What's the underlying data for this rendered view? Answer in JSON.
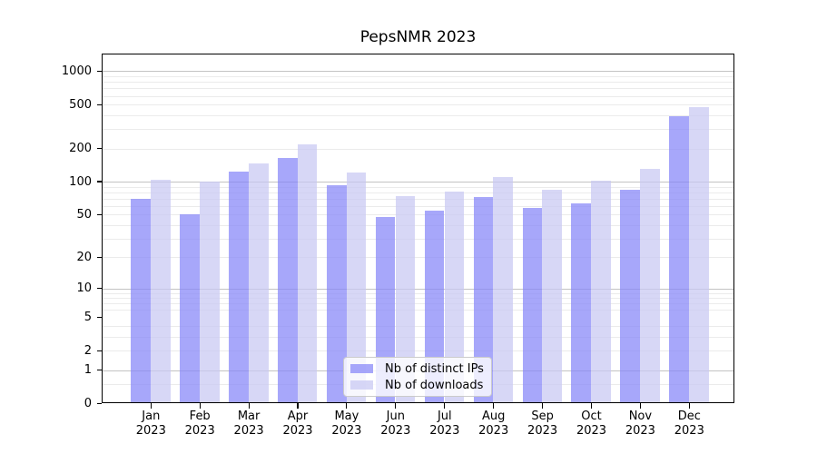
{
  "title": "PepsNMR 2023",
  "chart_data": {
    "type": "bar",
    "title": "PepsNMR 2023",
    "categories": [
      "Jan 2023",
      "Feb 2023",
      "Mar 2023",
      "Apr 2023",
      "May 2023",
      "Jun 2023",
      "Jul 2023",
      "Aug 2023",
      "Sep 2023",
      "Oct 2023",
      "Nov 2023",
      "Dec 2023"
    ],
    "series": [
      {
        "name": "Nb of distinct IPs",
        "color": "rgba(133,133,248,0.72)",
        "values": [
          70,
          50,
          123,
          164,
          93,
          47,
          54,
          72,
          58,
          63,
          85,
          394
        ]
      },
      {
        "name": "Nb of downloads",
        "color": "rgba(200,200,243,0.72)",
        "values": [
          103,
          100,
          145,
          220,
          120,
          74,
          81,
          111,
          84,
          102,
          130,
          475
        ]
      }
    ],
    "y_axis": {
      "scale": "log10(value+1)",
      "range": [
        0,
        1000
      ],
      "ticks": [
        0,
        1,
        2,
        5,
        10,
        20,
        50,
        100,
        200,
        500,
        1000
      ],
      "tick_labels": [
        "0",
        "1",
        "2",
        "5",
        "10",
        "20",
        "50",
        "100",
        "200",
        "500",
        "1000"
      ],
      "major_gridlines": [
        1,
        10,
        100,
        1000
      ],
      "minor_gridlines": [
        0.5,
        2,
        3,
        4,
        6,
        7,
        8,
        9,
        20,
        30,
        40,
        50,
        60,
        70,
        80,
        90,
        200,
        300,
        400,
        500,
        600,
        700,
        800,
        900
      ]
    },
    "xlabel": "",
    "ylabel": "",
    "grid": true,
    "legend_position": "lower-center"
  },
  "legend": {
    "items": [
      {
        "label": "Nb of distinct IPs"
      },
      {
        "label": "Nb of downloads"
      }
    ]
  },
  "colors": {
    "bar_distinct_ips": "rgba(133,133,248,0.72)",
    "bar_downloads": "rgba(200,200,243,0.72)",
    "major_gridline": "#c3c3c3",
    "minor_gridline": "#ebebeb",
    "axis_box": "#000000",
    "background": "#ffffff"
  }
}
